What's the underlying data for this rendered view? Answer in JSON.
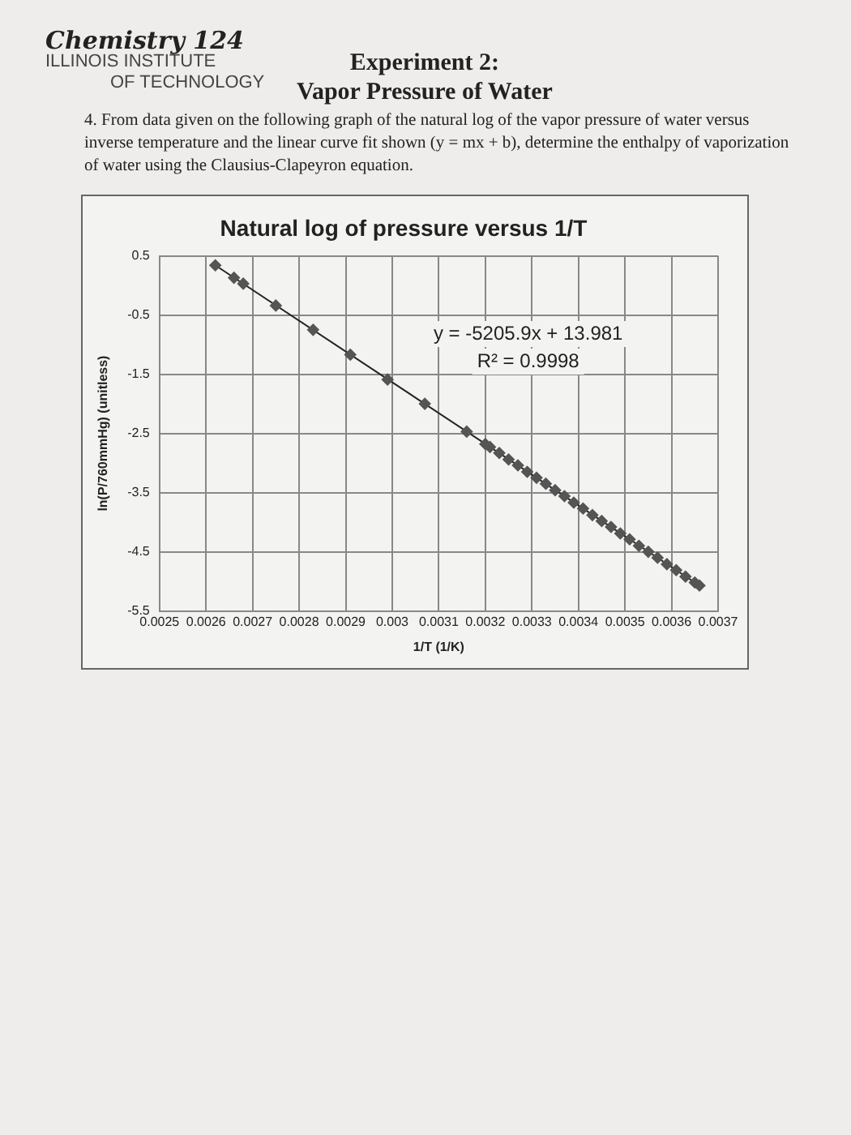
{
  "chart_data": {
    "type": "scatter",
    "title": "Natural log of pressure versus 1/T",
    "xlabel": "1/T (1/K)",
    "ylabel": "ln(P/760mmHg) (unitless)",
    "annotations": [
      "Chemistry 124",
      "ILLINOIS INSTITUTE",
      "OF TECHNOLOGY",
      "Experiment 2:",
      "Vapor Pressure of Water",
      "4. From data given on the following graph of the natural log of the vapor pressure of water versus inverse temperature and the linear curve fit shown (y = mx + b), determine the enthalpy of vaporization of water using the Clausius-Clapeyron equation.",
      "y = -5205.9x + 13.981",
      "R² = 0.9998"
    ],
    "series": [
      {
        "color": "#555555",
        "marker": "diamond",
        "x": [
          0.00262,
          0.00266,
          0.00268,
          0.00275,
          0.00283,
          0.00291,
          0.00299,
          0.00307,
          0.00316,
          0.0032,
          0.00321,
          0.00323,
          0.00325,
          0.00327,
          0.00329,
          0.00331,
          0.00333,
          0.00335,
          0.00337,
          0.00339,
          0.00341,
          0.00343,
          0.00345,
          0.00347,
          0.00349,
          0.00351,
          0.00353,
          0.00355,
          0.00357,
          0.00359,
          0.00361,
          0.00363,
          0.00365,
          0.00366
        ],
        "values": [
          0.34,
          0.13,
          0.03,
          -0.34,
          -0.75,
          -1.17,
          -1.59,
          -2.0,
          -2.47,
          -2.68,
          -2.73,
          -2.83,
          -2.94,
          -3.04,
          -3.15,
          -3.25,
          -3.35,
          -3.46,
          -3.56,
          -3.67,
          -3.77,
          -3.88,
          -3.98,
          -4.08,
          -4.19,
          -4.29,
          -4.4,
          -4.5,
          -4.6,
          -4.71,
          -4.81,
          -4.92,
          -5.02,
          -5.07
        ]
      },
      {
        "type": "line",
        "color": "#222222",
        "marker": "none",
        "line_style": "solid",
        "x": [
          0.00262,
          0.00366
        ],
        "values": [
          0.34,
          -5.07
        ]
      }
    ],
    "xlim": [
      0.0025,
      0.0037
    ],
    "xticks": [
      0.0025,
      0.0026,
      0.0027,
      0.0028,
      0.0029,
      0.003,
      0.0031,
      0.0032,
      0.0033,
      0.0034,
      0.0035,
      0.0036,
      0.0037
    ],
    "ylim": [
      -5.5,
      0.5
    ],
    "yticks": [
      0.5,
      -0.5,
      -1.5,
      -2.5,
      -3.5,
      -4.5,
      -5.5
    ],
    "grid": true,
    "legend": false
  }
}
